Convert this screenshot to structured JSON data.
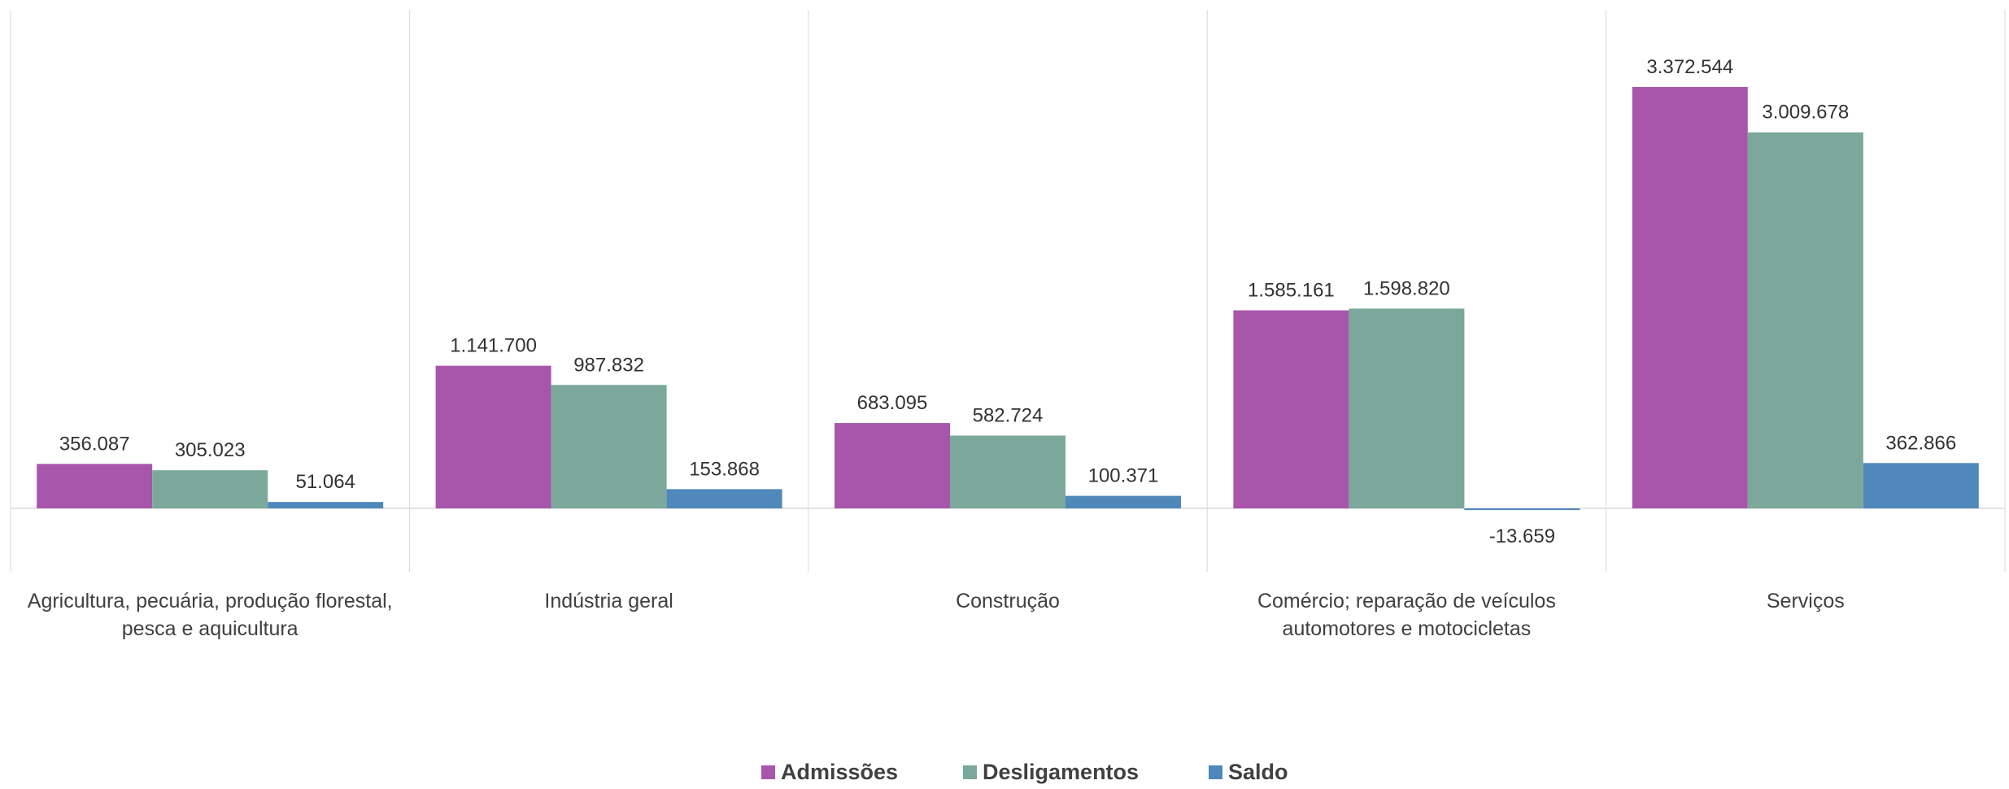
{
  "chart_data": {
    "type": "bar",
    "title": "",
    "xlabel": "",
    "ylabel": "",
    "categories": [
      [
        "Agricultura, pecuária, produção florestal,",
        "pesca e aquicultura"
      ],
      [
        "Indústria geral"
      ],
      [
        "Construção"
      ],
      [
        "Comércio; reparação de veículos",
        "automotores e motocicletas"
      ],
      [
        "Serviços"
      ]
    ],
    "series": [
      {
        "name": "Admissões",
        "color": "#A855AC",
        "values": [
          356087,
          1141700,
          683095,
          1585161,
          3372544
        ],
        "labels": [
          "356.087",
          "1.141.700",
          "683.095",
          "1.585.161",
          "3.372.544"
        ]
      },
      {
        "name": "Desligamentos",
        "color": "#7BA89B",
        "values": [
          305023,
          987832,
          582724,
          1598820,
          3009678
        ],
        "labels": [
          "305.023",
          "987.832",
          "582.724",
          "1.598.820",
          "3.009.678"
        ]
      },
      {
        "name": "Saldo",
        "color": "#4F88BB",
        "values": [
          51064,
          153868,
          100371,
          -13659,
          362866
        ],
        "labels": [
          "51.064",
          "153.868",
          "100.371",
          "-13.659",
          "362.866"
        ]
      }
    ],
    "ylim": [
      -500000,
      4000000
    ],
    "grid": false,
    "legend_position": "bottom"
  }
}
